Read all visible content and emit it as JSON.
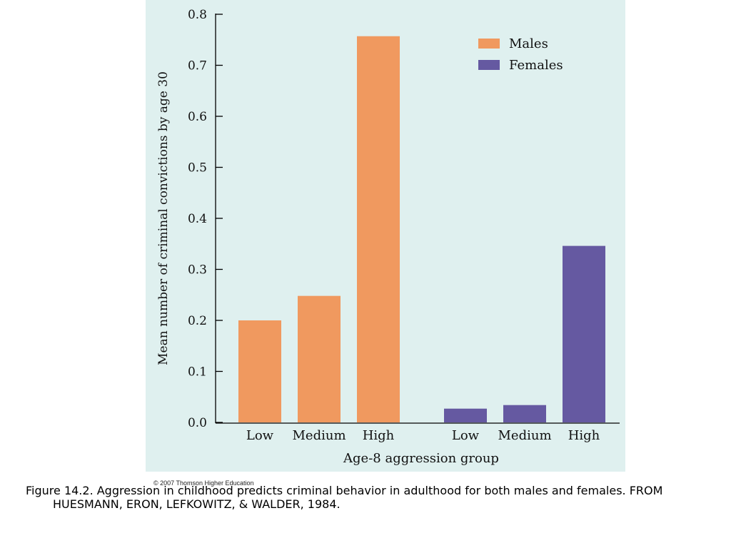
{
  "chart_data": {
    "type": "bar",
    "groups": [
      {
        "name": "Males",
        "categories": [
          "Low",
          "Medium",
          "High"
        ],
        "values": [
          0.2,
          0.248,
          0.757
        ],
        "color": "#f0995f"
      },
      {
        "name": "Females",
        "categories": [
          "Low",
          "Medium",
          "High"
        ],
        "values": [
          0.027,
          0.034,
          0.346
        ],
        "color": "#6559a1"
      }
    ],
    "legend": [
      {
        "label": "Males",
        "color": "#f0995f"
      },
      {
        "label": "Females",
        "color": "#6559a1"
      }
    ],
    "legend_position": "top-right",
    "xlabel": "Age-8 aggression group",
    "ylabel": "Mean number of criminal convictions by age 30",
    "yticks": [
      "0.0",
      "0.1",
      "0.2",
      "0.3",
      "0.4",
      "0.5",
      "0.6",
      "0.7",
      "0.8"
    ],
    "ylim": [
      0,
      0.8
    ],
    "grid": false
  },
  "copyright": "© 2007 Thomson Higher Education",
  "caption": {
    "line1": "Figure 14.2. Aggression in childhood predicts criminal behavior in adulthood for both males and females.  FROM",
    "line2": "HUESMANN, ERON, LEFKOWITZ, & WALDER, 1984."
  },
  "colors": {
    "panel_background": "#dff0ef"
  }
}
